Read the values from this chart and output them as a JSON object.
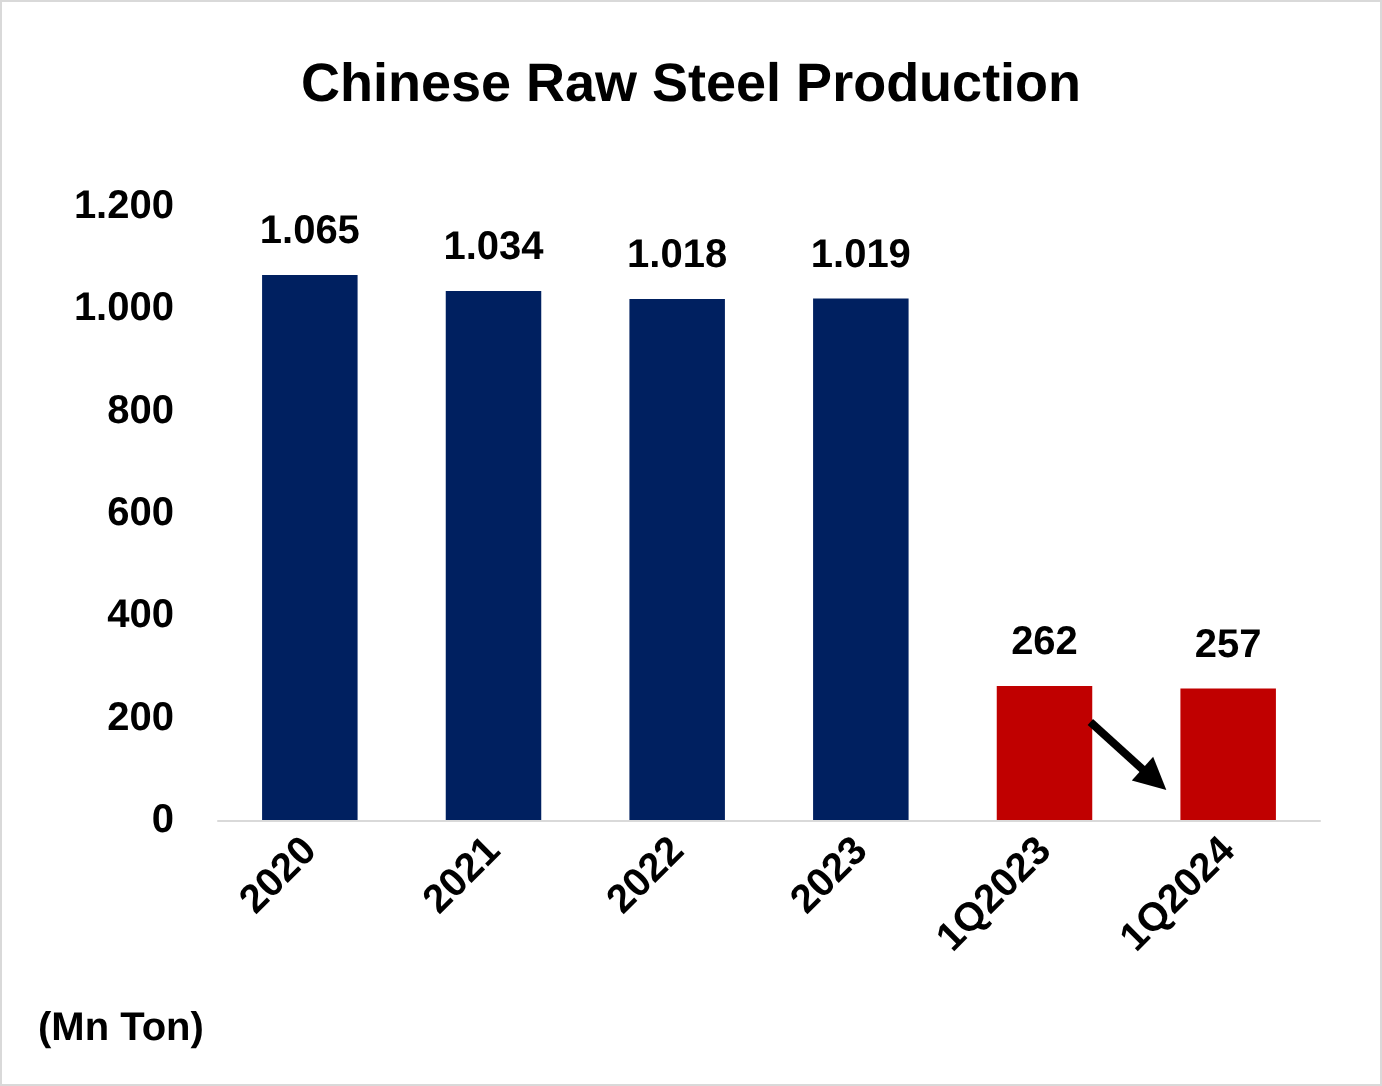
{
  "chart_data": {
    "type": "bar",
    "title": "Chinese Raw Steel Production",
    "ylabel": "(Mn Ton)",
    "categories": [
      "2020",
      "2021",
      "2022",
      "2023",
      "1Q2023",
      "1Q2024"
    ],
    "values": [
      1065,
      1034,
      1018,
      1019,
      262,
      257
    ],
    "colors": [
      "#002060",
      "#002060",
      "#002060",
      "#002060",
      "#c00000",
      "#c00000"
    ],
    "value_labels": [
      "1.065",
      "1.034",
      "1.018",
      "1.019",
      "262",
      "257"
    ],
    "ylim": [
      0,
      1200
    ],
    "yticks": [
      0,
      200,
      400,
      600,
      800,
      {
        "value": 1000,
        "label": "1.000"
      },
      {
        "value": 1200,
        "label": "1.200"
      }
    ],
    "grid": false
  }
}
